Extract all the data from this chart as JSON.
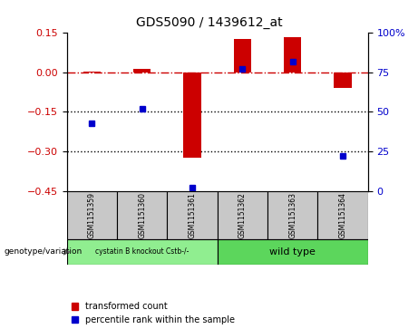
{
  "title": "GDS5090 / 1439612_at",
  "samples": [
    "GSM1151359",
    "GSM1151360",
    "GSM1151361",
    "GSM1151362",
    "GSM1151363",
    "GSM1151364"
  ],
  "red_values": [
    0.003,
    0.012,
    -0.325,
    0.128,
    0.135,
    -0.058
  ],
  "blue_values_pct": [
    43,
    52,
    2,
    77,
    82,
    22
  ],
  "ylim_left": [
    -0.45,
    0.15
  ],
  "ylim_right": [
    0,
    100
  ],
  "yticks_left": [
    0.15,
    0.0,
    -0.15,
    -0.3,
    -0.45
  ],
  "yticks_right": [
    100,
    75,
    50,
    25,
    0
  ],
  "hlines": [
    -0.15,
    -0.3
  ],
  "group1_label": "cystatin B knockout Cstb-/-",
  "group2_label": "wild type",
  "group1_indices": [
    0,
    1,
    2
  ],
  "group2_indices": [
    3,
    4,
    5
  ],
  "group1_color": "#90EE90",
  "group2_color": "#5CD65C",
  "xlabel_left": "genotype/variation",
  "legend_red": "transformed count",
  "legend_blue": "percentile rank within the sample",
  "bar_width": 0.35,
  "red_color": "#CC0000",
  "blue_color": "#0000CC",
  "dashed_line_color": "#CC0000",
  "bg_plot": "#FFFFFF",
  "bg_table": "#C8C8C8"
}
